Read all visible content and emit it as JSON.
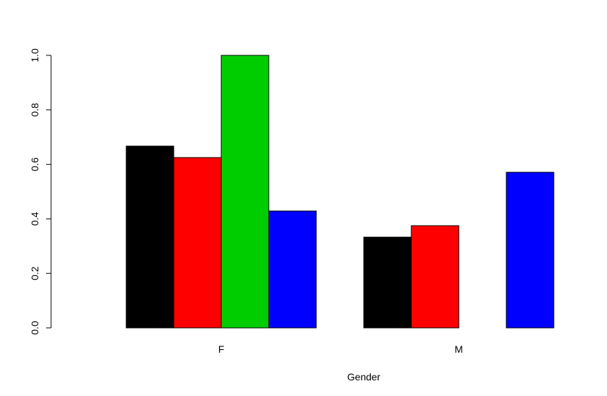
{
  "chart_data": {
    "type": "bar",
    "layout": "grouped",
    "categories": [
      "F",
      "M"
    ],
    "series": [
      {
        "color": "#000000",
        "values": [
          0.667,
          0.333
        ]
      },
      {
        "color": "#ff0000",
        "values": [
          0.625,
          0.375
        ]
      },
      {
        "color": "#00cd00",
        "values": [
          1.0,
          0.0
        ]
      },
      {
        "color": "#0000ff",
        "values": [
          0.429,
          0.571
        ]
      }
    ],
    "xlabel": "Gender",
    "ylabel": "",
    "ylim": [
      0,
      1.0
    ],
    "yticks": [
      "0.0",
      "0.2",
      "0.4",
      "0.6",
      "0.8",
      "1.0"
    ],
    "grid": false,
    "legend": "none"
  }
}
